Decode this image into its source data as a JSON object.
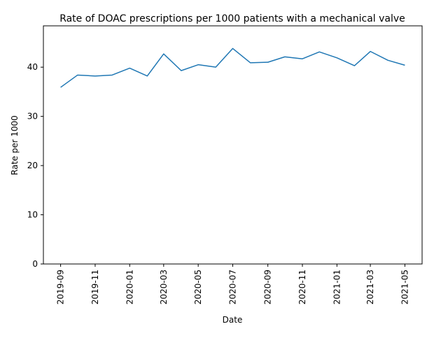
{
  "chart_data": {
    "type": "line",
    "title": "Rate of DOAC prescriptions per 1000 patients with a mechanical valve",
    "xlabel": "Date",
    "ylabel": "Rate per 1000",
    "x": [
      "2019-09-01",
      "2019-10-01",
      "2019-11-01",
      "2019-12-01",
      "2020-01-01",
      "2020-02-01",
      "2020-03-01",
      "2020-04-01",
      "2020-05-01",
      "2020-06-01",
      "2020-07-01",
      "2020-08-01",
      "2020-09-01",
      "2020-10-01",
      "2020-11-01",
      "2020-12-01",
      "2021-01-01",
      "2021-02-01",
      "2021-03-01",
      "2021-04-01",
      "2021-05-01"
    ],
    "series": [
      {
        "values": [
          35.9,
          38.4,
          38.2,
          38.4,
          39.8,
          38.2,
          42.7,
          39.3,
          40.5,
          40.0,
          43.8,
          40.9,
          41.0,
          42.1,
          41.7,
          43.1,
          41.9,
          40.3,
          43.2,
          41.4,
          40.4
        ],
        "color": "#1f77b4"
      }
    ],
    "x_ticks": [
      "2019-09",
      "2019-11",
      "2020-01",
      "2020-03",
      "2020-05",
      "2020-07",
      "2020-09",
      "2020-11",
      "2021-01",
      "2021-03",
      "2021-05"
    ],
    "y_ticks": [
      0,
      10,
      20,
      30,
      40
    ],
    "ylim": [
      0,
      48.4
    ],
    "grid": false,
    "legend": false
  }
}
